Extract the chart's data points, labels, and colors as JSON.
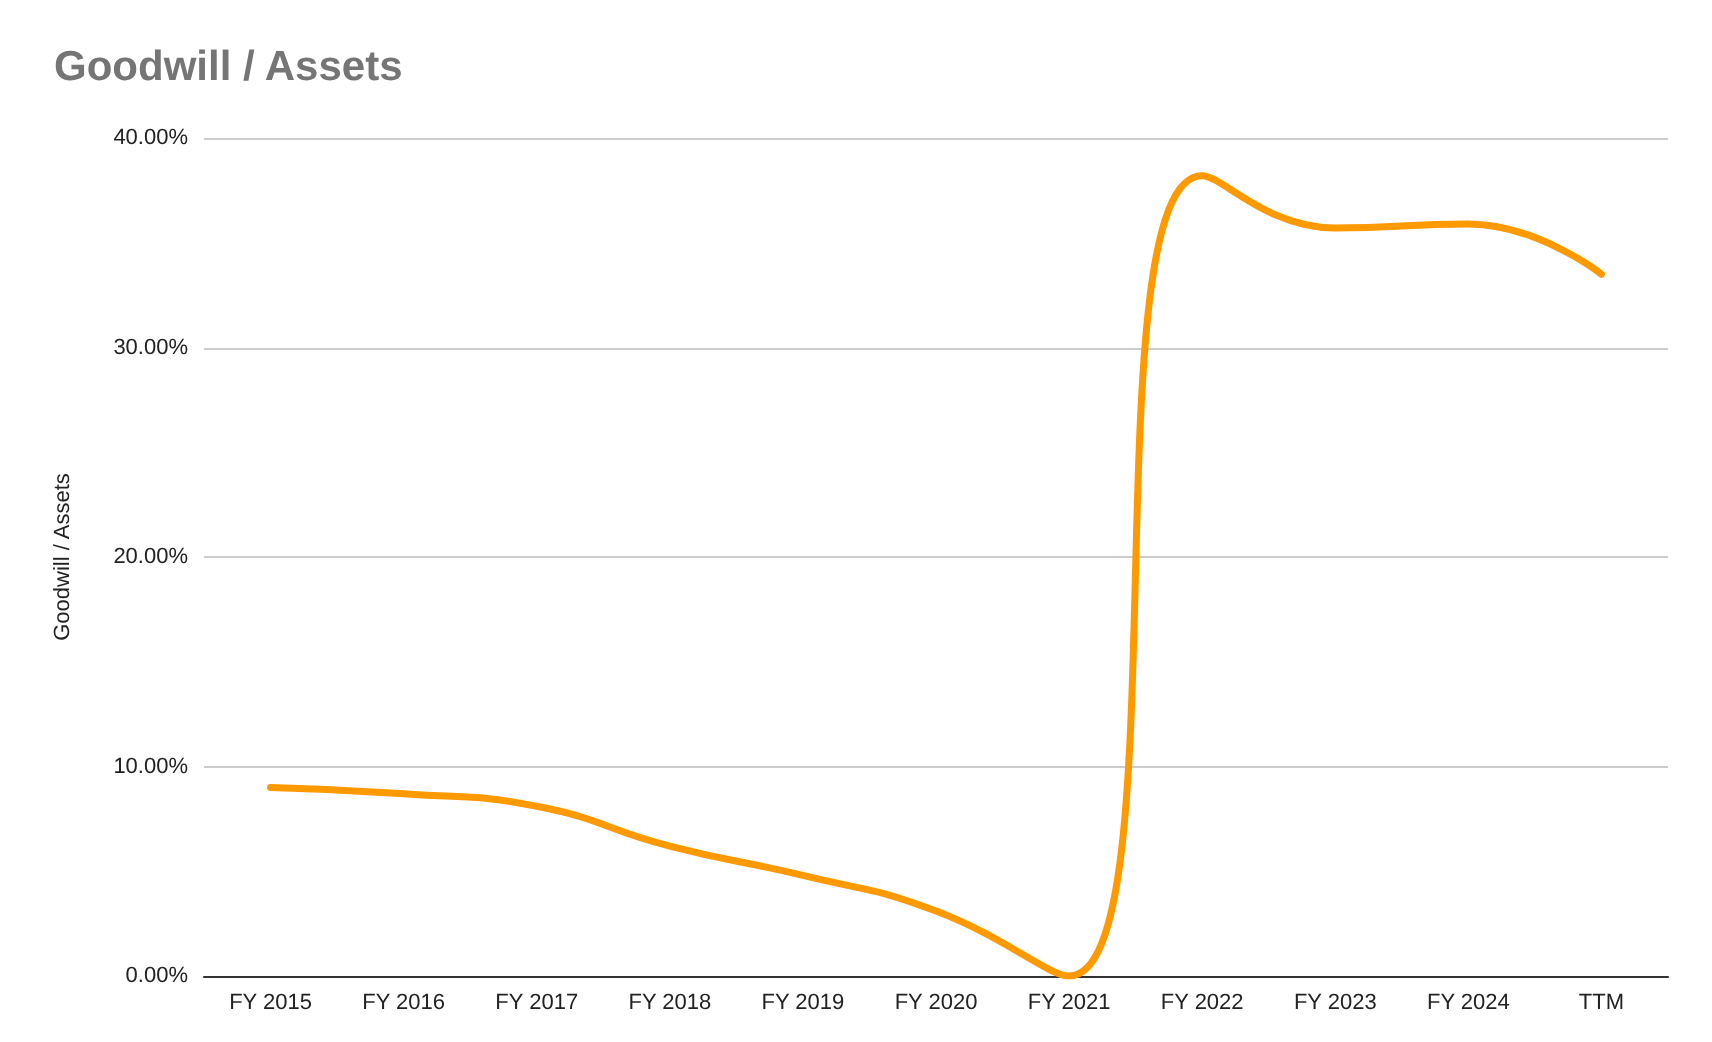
{
  "chart_data": {
    "type": "line",
    "title": "Goodwill / Assets",
    "ylabel": "Goodwill / Assets",
    "categories": [
      "FY 2015",
      "FY 2016",
      "FY 2017",
      "FY 2018",
      "FY 2019",
      "FY 2020",
      "FY 2021",
      "FY 2022",
      "FY 2023",
      "FY 2024",
      "TTM"
    ],
    "series": [
      {
        "color": "#ff9900",
        "values": [
          9.0,
          8.7,
          8.1,
          6.2,
          4.8,
          3.1,
          0.0,
          38.2,
          35.7,
          35.9,
          33.5
        ]
      }
    ],
    "ylim": [
      0,
      40
    ],
    "yticks": [
      {
        "value": 0,
        "label": "0.00%"
      },
      {
        "value": 10,
        "label": "10.00%"
      },
      {
        "value": 20,
        "label": "20.00%"
      },
      {
        "value": 30,
        "label": "30.00%"
      },
      {
        "value": 40,
        "label": "40.00%"
      }
    ],
    "grid": "y",
    "marker": "none",
    "line_style": "solid"
  }
}
